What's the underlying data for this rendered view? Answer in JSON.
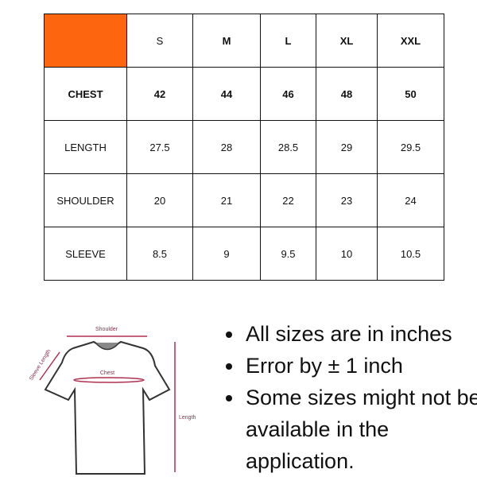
{
  "colors": {
    "corner": "#fd650f",
    "diagram_lines": "#b03050"
  },
  "table": {
    "headers": [
      "",
      "S",
      "M",
      "L",
      "XL",
      "XXL"
    ],
    "rows": [
      {
        "label": "CHEST",
        "values": [
          "42",
          "44",
          "46",
          "48",
          "50"
        ]
      },
      {
        "label": "LENGTH",
        "values": [
          "27.5",
          "28",
          "28.5",
          "29",
          "29.5"
        ]
      },
      {
        "label": "SHOULDER",
        "values": [
          "20",
          "21",
          "22",
          "23",
          "24"
        ]
      },
      {
        "label": "SLEEVE",
        "values": [
          "8.5",
          "9",
          "9.5",
          "10",
          "10.5"
        ]
      }
    ]
  },
  "diagram": {
    "shoulder": "Shoulder",
    "sleeve": "Sleeve Length",
    "chest": "Chest",
    "length": "Length"
  },
  "notes": [
    "All sizes are in inches",
    "Error by ± 1 inch",
    "Some sizes might not be available in the application."
  ]
}
